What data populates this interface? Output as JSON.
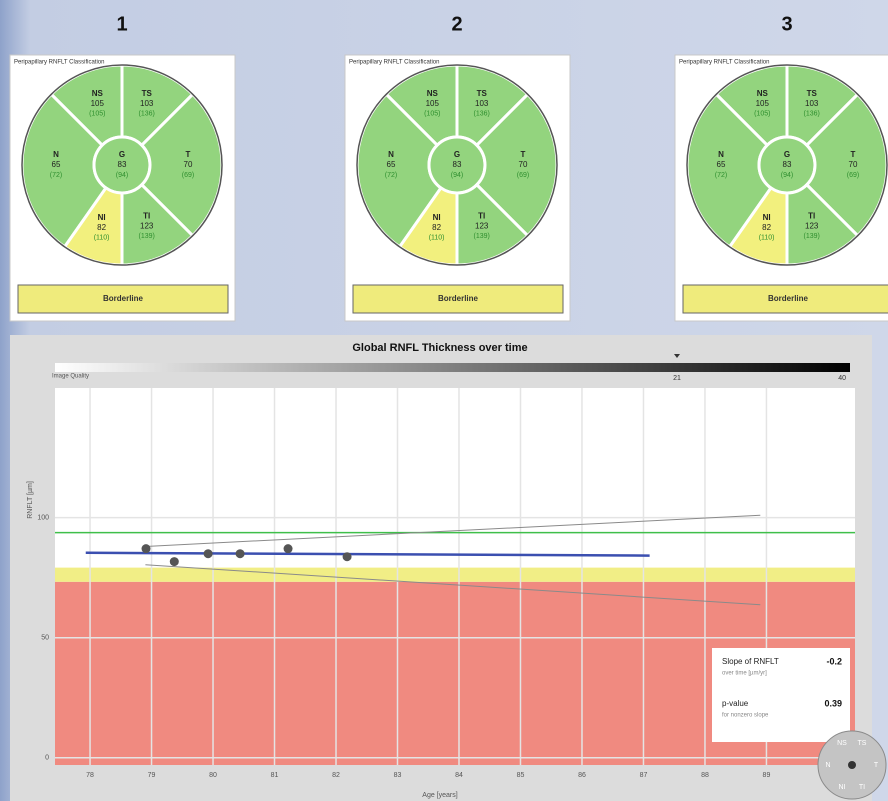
{
  "panels": [
    {
      "number": "1",
      "title": "Peripapillary RNFLT Classification",
      "classification": "Borderline",
      "sectors": [
        {
          "label": "NS",
          "value": "105",
          "normal": "(105)",
          "color": "#93d47e"
        },
        {
          "label": "TS",
          "value": "103",
          "normal": "(136)",
          "color": "#93d47e"
        },
        {
          "label": "N",
          "value": "65",
          "normal": "(72)",
          "color": "#93d47e"
        },
        {
          "label": "G",
          "value": "83",
          "normal": "(94)",
          "color": "#93d47e"
        },
        {
          "label": "T",
          "value": "70",
          "normal": "(69)",
          "color": "#93d47e"
        },
        {
          "label": "NI",
          "value": "82",
          "normal": "(110)",
          "color": "#f2f07e"
        },
        {
          "label": "TI",
          "value": "123",
          "normal": "(139)",
          "color": "#93d47e"
        }
      ]
    },
    {
      "number": "2",
      "title": "Peripapillary RNFLT Classification",
      "classification": "Borderline",
      "sectors": [
        {
          "label": "NS",
          "value": "105",
          "normal": "(105)",
          "color": "#93d47e"
        },
        {
          "label": "TS",
          "value": "103",
          "normal": "(136)",
          "color": "#93d47e"
        },
        {
          "label": "N",
          "value": "65",
          "normal": "(72)",
          "color": "#93d47e"
        },
        {
          "label": "G",
          "value": "83",
          "normal": "(94)",
          "color": "#93d47e"
        },
        {
          "label": "T",
          "value": "70",
          "normal": "(69)",
          "color": "#93d47e"
        },
        {
          "label": "NI",
          "value": "82",
          "normal": "(110)",
          "color": "#f2f07e"
        },
        {
          "label": "TI",
          "value": "123",
          "normal": "(139)",
          "color": "#93d47e"
        }
      ]
    },
    {
      "number": "3",
      "title": "Peripapillary RNFLT Classification",
      "classification": "Borderline",
      "sectors": [
        {
          "label": "NS",
          "value": "105",
          "normal": "(105)",
          "color": "#93d47e"
        },
        {
          "label": "TS",
          "value": "103",
          "normal": "(136)",
          "color": "#93d47e"
        },
        {
          "label": "N",
          "value": "65",
          "normal": "(72)",
          "color": "#93d47e"
        },
        {
          "label": "G",
          "value": "83",
          "normal": "(94)",
          "color": "#93d47e"
        },
        {
          "label": "T",
          "value": "70",
          "normal": "(69)",
          "color": "#93d47e"
        },
        {
          "label": "NI",
          "value": "82",
          "normal": "(110)",
          "color": "#f2f07e"
        },
        {
          "label": "TI",
          "value": "123",
          "normal": "(139)",
          "color": "#93d47e"
        }
      ]
    }
  ],
  "chart_data": {
    "type": "scatter",
    "title": "Global RNFL Thickness over time",
    "quality_label": "Image Quality",
    "quality_marker": 21,
    "quality_max": 40,
    "y_label": "RNFLT [µm]",
    "x_label": "Age [years]",
    "xlim": [
      77.43,
      90.44
    ],
    "ylim": [
      -3,
      154
    ],
    "xticks": [
      78,
      79,
      80,
      81,
      82,
      83,
      84,
      85,
      86,
      87,
      88,
      89
    ],
    "yticks": [
      0,
      50,
      100
    ],
    "grid": true,
    "x": [
      78.91,
      79.37,
      79.92,
      80.44,
      81.22,
      82.18
    ],
    "values": [
      87.1,
      81.7,
      85,
      85,
      87.1,
      83.75
    ],
    "color": "#555555",
    "trend": {
      "x": [
        77.93,
        87.1
      ],
      "values": [
        85.4,
        84.2
      ],
      "color": "#3b4fb0"
    },
    "upper_bound": {
      "x": [
        78.9,
        88.9
      ],
      "values": [
        88,
        101
      ],
      "color": "#8a8a8a"
    },
    "lower_bound": {
      "x": [
        78.9,
        88.9
      ],
      "values": [
        80.4,
        63.75
      ],
      "color": "#8a8a8a"
    },
    "normal_limit": {
      "value": 93.75,
      "color": "#3fbf4a"
    },
    "borderline_limit": {
      "value": 79.2,
      "color": "#f1ee86"
    },
    "outside_limit": {
      "value": 73.3,
      "color": "#f08a80"
    },
    "slope_label": "Slope of RNFLT",
    "slope_sub": "over time [µm/yr]",
    "slope": -0.2,
    "p_label": "p-value",
    "p_sub": "for nonzero slope",
    "p_value": 0.39,
    "compass": [
      "NS",
      "TS",
      "N",
      "T",
      "NI",
      "TI"
    ]
  }
}
